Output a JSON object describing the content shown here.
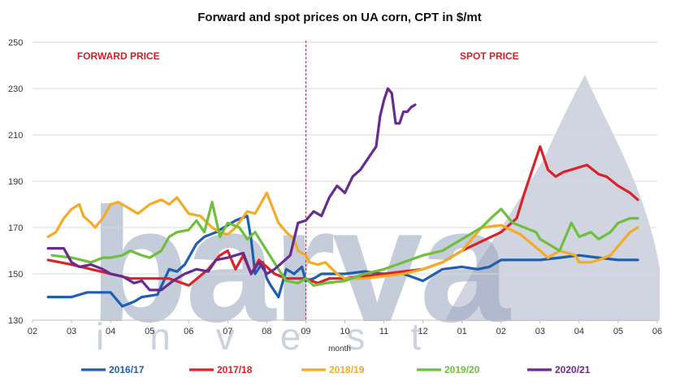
{
  "watermark": {
    "brand": "barva",
    "subtitle": "invest"
  },
  "chart_data": {
    "type": "line",
    "title": "Forward and spot prices on UA corn, CPT in $/mt",
    "xlabel": "month",
    "ylabel": "",
    "ylim": [
      130,
      250
    ],
    "yticks": [
      130,
      150,
      170,
      190,
      210,
      230,
      250
    ],
    "categories": [
      "02",
      "03",
      "04",
      "05",
      "06",
      "07",
      "08",
      "09",
      "10",
      "11",
      "12",
      "01",
      "02",
      "03",
      "04",
      "05",
      "06"
    ],
    "regions": [
      {
        "label": "FORWARD PRICE",
        "at": 2.2
      },
      {
        "label": "SPOT PRICE",
        "at": 11.7
      }
    ],
    "divider_at": 7.0,
    "grid": "horizontal",
    "legend_position": "bottom",
    "series": [
      {
        "name": "2016/17",
        "color": "#1f5fae",
        "x": [
          0.4,
          1.0,
          1.4,
          2.0,
          2.3,
          2.6,
          2.8,
          3.2,
          3.5,
          3.7,
          3.9,
          4.2,
          4.4,
          4.7,
          4.9,
          5.2,
          5.5,
          5.6,
          5.7,
          5.9,
          6.0,
          6.1,
          6.3,
          6.5,
          6.7,
          6.9,
          7.0,
          7.2,
          7.4,
          7.6,
          7.8,
          8.0,
          8.5,
          9.0,
          9.5,
          10.0,
          10.5,
          11.0,
          11.4,
          11.7,
          12.0,
          12.5,
          13.0,
          13.5,
          14.0,
          14.5,
          15.0,
          15.5
        ],
        "values": [
          140,
          140,
          142,
          142,
          136,
          138,
          140,
          141,
          152,
          151,
          154,
          163,
          166,
          168,
          170,
          173,
          175,
          165,
          150,
          155,
          148,
          145,
          140,
          152,
          150,
          153,
          147,
          148,
          150,
          150,
          150,
          150,
          151,
          150,
          150,
          147,
          152,
          153,
          152,
          153,
          156,
          156,
          156,
          157,
          158,
          157,
          156,
          156
        ]
      },
      {
        "name": "2017/18",
        "color": "#d9232a",
        "x": [
          0.4,
          1.0,
          1.5,
          2.0,
          2.5,
          3.0,
          3.5,
          4.0,
          4.5,
          4.8,
          5.0,
          5.2,
          5.4,
          5.6,
          5.8,
          6.0,
          6.2,
          6.5,
          7.0,
          7.3,
          7.6,
          8.0,
          8.5,
          9.0,
          9.5,
          10.0,
          10.5,
          11.0,
          11.5,
          12.0,
          12.4,
          12.6,
          12.9,
          13.0,
          13.2,
          13.4,
          13.6,
          13.8,
          14.0,
          14.2,
          14.5,
          14.7,
          15.0,
          15.3,
          15.5
        ],
        "values": [
          156,
          154,
          152,
          150,
          148,
          148,
          148,
          145,
          152,
          158,
          160,
          152,
          158,
          150,
          156,
          153,
          150,
          148,
          148,
          146,
          148,
          148,
          149,
          150,
          151,
          152,
          155,
          160,
          164,
          168,
          174,
          185,
          200,
          205,
          195,
          192,
          194,
          195,
          196,
          197,
          193,
          192,
          188,
          185,
          182
        ]
      },
      {
        "name": "2018/19",
        "color": "#f4ab25",
        "x": [
          0.4,
          0.6,
          0.8,
          1.0,
          1.2,
          1.3,
          1.5,
          1.6,
          1.8,
          2.0,
          2.2,
          2.3,
          2.5,
          2.7,
          3.0,
          3.3,
          3.5,
          3.7,
          4.0,
          4.3,
          4.6,
          4.8,
          5.0,
          5.2,
          5.5,
          5.7,
          6.0,
          6.3,
          6.5,
          6.7,
          6.8,
          7.0,
          7.1,
          7.3,
          7.5,
          7.8,
          8.0,
          8.5,
          9.0,
          9.5,
          10.0,
          10.5,
          11.0,
          11.5,
          12.0,
          12.5,
          13.0,
          13.2,
          13.5,
          13.7,
          13.9,
          14.0,
          14.3,
          14.5,
          14.8,
          15.0,
          15.3,
          15.5
        ],
        "values": [
          166,
          168,
          174,
          178,
          180,
          175,
          172,
          170,
          174,
          180,
          181,
          180,
          178,
          176,
          180,
          182,
          180,
          183,
          176,
          175,
          170,
          168,
          167,
          170,
          177,
          176,
          185,
          172,
          168,
          165,
          160,
          158,
          155,
          154,
          155,
          150,
          148,
          148,
          149,
          150,
          152,
          155,
          160,
          170,
          171,
          167,
          160,
          157,
          160,
          159,
          158,
          155,
          155,
          156,
          158,
          162,
          168,
          170
        ]
      },
      {
        "name": "2019/20",
        "color": "#6fbf3d",
        "x": [
          0.5,
          1.0,
          1.5,
          1.8,
          2.0,
          2.3,
          2.5,
          2.8,
          3.0,
          3.3,
          3.5,
          3.7,
          4.0,
          4.2,
          4.4,
          4.6,
          4.8,
          5.0,
          5.3,
          5.5,
          5.7,
          6.0,
          6.3,
          6.5,
          6.8,
          7.0,
          7.2,
          7.5,
          8.0,
          8.5,
          9.0,
          9.5,
          10.0,
          10.5,
          11.0,
          11.3,
          11.5,
          11.8,
          12.0,
          12.3,
          12.6,
          12.9,
          13.0,
          13.3,
          13.5,
          13.8,
          14.0,
          14.3,
          14.5,
          14.8,
          15.0,
          15.3,
          15.5
        ],
        "values": [
          158,
          157,
          155,
          157,
          157,
          158,
          160,
          158,
          157,
          160,
          166,
          168,
          169,
          173,
          168,
          181,
          166,
          172,
          170,
          165,
          168,
          160,
          152,
          147,
          146,
          148,
          145,
          146,
          147,
          150,
          152,
          155,
          158,
          160,
          165,
          168,
          170,
          175,
          178,
          172,
          170,
          168,
          165,
          162,
          160,
          172,
          166,
          168,
          165,
          168,
          172,
          174,
          174
        ]
      },
      {
        "name": "2020/21",
        "color": "#6a2b90",
        "x": [
          0.4,
          0.8,
          1.0,
          1.2,
          1.5,
          1.8,
          2.0,
          2.3,
          2.6,
          2.8,
          3.0,
          3.3,
          3.6,
          3.9,
          4.2,
          4.5,
          4.7,
          5.0,
          5.2,
          5.4,
          5.6,
          5.8,
          6.0,
          6.2,
          6.4,
          6.6,
          6.8,
          7.0,
          7.2,
          7.4,
          7.6,
          7.8,
          8.0,
          8.2,
          8.4,
          8.6,
          8.8,
          8.9,
          9.0,
          9.1,
          9.2,
          9.3,
          9.4,
          9.5,
          9.6,
          9.7,
          9.8
        ],
        "values": [
          161,
          161,
          155,
          153,
          154,
          152,
          150,
          149,
          146,
          147,
          143,
          143,
          147,
          150,
          152,
          151,
          156,
          157,
          158,
          159,
          150,
          155,
          150,
          152,
          155,
          158,
          172,
          173,
          177,
          175,
          183,
          188,
          185,
          192,
          195,
          200,
          205,
          218,
          225,
          230,
          228,
          215,
          215,
          220,
          220,
          222,
          223
        ]
      }
    ]
  }
}
